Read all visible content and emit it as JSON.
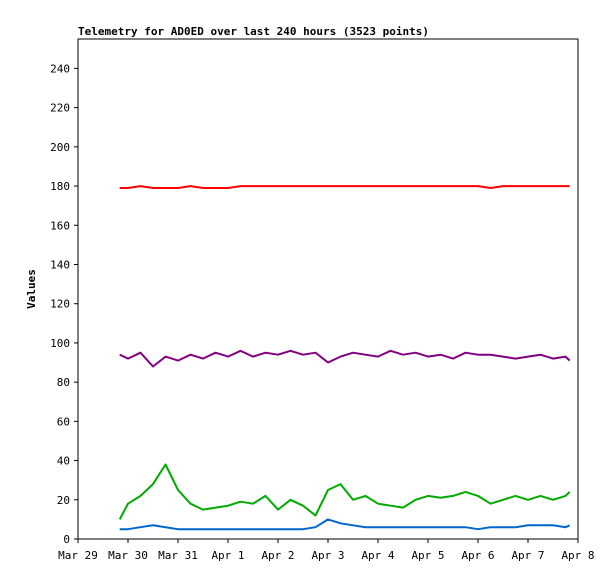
{
  "chart_data": {
    "type": "line",
    "title": "Telemetry for AD0ED over last 240 hours (3523 points)",
    "xlabel": "",
    "ylabel": "Values",
    "x_axis_type": "date",
    "xlim": [
      "2024-03-29",
      "2024-04-08"
    ],
    "ylim": [
      0,
      255
    ],
    "x_ticks": [
      {
        "date": "2024-03-29",
        "label": "Mar 29"
      },
      {
        "date": "2024-03-30",
        "label": "Mar 30"
      },
      {
        "date": "2024-03-31",
        "label": "Mar 31"
      },
      {
        "date": "2024-04-01",
        "label": "Apr 1"
      },
      {
        "date": "2024-04-02",
        "label": "Apr 2"
      },
      {
        "date": "2024-04-03",
        "label": "Apr 3"
      },
      {
        "date": "2024-04-04",
        "label": "Apr 4"
      },
      {
        "date": "2024-04-05",
        "label": "Apr 5"
      },
      {
        "date": "2024-04-06",
        "label": "Apr 6"
      },
      {
        "date": "2024-04-07",
        "label": "Apr 7"
      },
      {
        "date": "2024-04-08",
        "label": "Apr 8"
      }
    ],
    "y_ticks": [
      0,
      20,
      40,
      60,
      80,
      100,
      120,
      140,
      160,
      180,
      200,
      220,
      240
    ],
    "grid": false,
    "legend": "none",
    "x": [
      "2024-03-29T20:00",
      "2024-03-30T00:00",
      "2024-03-30T06:00",
      "2024-03-30T12:00",
      "2024-03-30T18:00",
      "2024-03-31T00:00",
      "2024-03-31T06:00",
      "2024-03-31T12:00",
      "2024-03-31T18:00",
      "2024-04-01T00:00",
      "2024-04-01T06:00",
      "2024-04-01T12:00",
      "2024-04-01T18:00",
      "2024-04-02T00:00",
      "2024-04-02T06:00",
      "2024-04-02T12:00",
      "2024-04-02T18:00",
      "2024-04-03T00:00",
      "2024-04-03T06:00",
      "2024-04-03T12:00",
      "2024-04-03T18:00",
      "2024-04-04T00:00",
      "2024-04-04T06:00",
      "2024-04-04T12:00",
      "2024-04-04T18:00",
      "2024-04-05T00:00",
      "2024-04-05T06:00",
      "2024-04-05T12:00",
      "2024-04-05T18:00",
      "2024-04-06T00:00",
      "2024-04-06T06:00",
      "2024-04-06T12:00",
      "2024-04-06T18:00",
      "2024-04-07T00:00",
      "2024-04-07T06:00",
      "2024-04-07T12:00",
      "2024-04-07T18:00",
      "2024-04-07T20:00"
    ],
    "series": [
      {
        "color": "#ff0000",
        "values": [
          179,
          179,
          180,
          179,
          179,
          179,
          180,
          179,
          179,
          179,
          180,
          180,
          180,
          180,
          180,
          180,
          180,
          180,
          180,
          180,
          180,
          180,
          180,
          180,
          180,
          180,
          180,
          180,
          180,
          180,
          179,
          180,
          180,
          180,
          180,
          180,
          180,
          180
        ]
      },
      {
        "color": "#800080",
        "values": [
          94,
          92,
          95,
          88,
          93,
          91,
          94,
          92,
          95,
          93,
          96,
          93,
          95,
          94,
          96,
          94,
          95,
          90,
          93,
          95,
          94,
          93,
          96,
          94,
          95,
          93,
          94,
          92,
          95,
          94,
          94,
          93,
          92,
          93,
          94,
          92,
          93,
          91
        ]
      },
      {
        "color": "#00aa00",
        "values": [
          10,
          18,
          22,
          28,
          38,
          25,
          18,
          15,
          16,
          17,
          19,
          18,
          22,
          15,
          20,
          17,
          12,
          25,
          28,
          20,
          22,
          18,
          17,
          16,
          20,
          22,
          21,
          22,
          24,
          22,
          18,
          20,
          22,
          20,
          22,
          20,
          22,
          24
        ]
      },
      {
        "color": "#0066cc",
        "values": [
          5,
          5,
          6,
          7,
          6,
          5,
          5,
          5,
          5,
          5,
          5,
          5,
          5,
          5,
          5,
          5,
          6,
          10,
          8,
          7,
          6,
          6,
          6,
          6,
          6,
          6,
          6,
          6,
          6,
          5,
          6,
          6,
          6,
          7,
          7,
          7,
          6,
          7
        ]
      }
    ]
  }
}
